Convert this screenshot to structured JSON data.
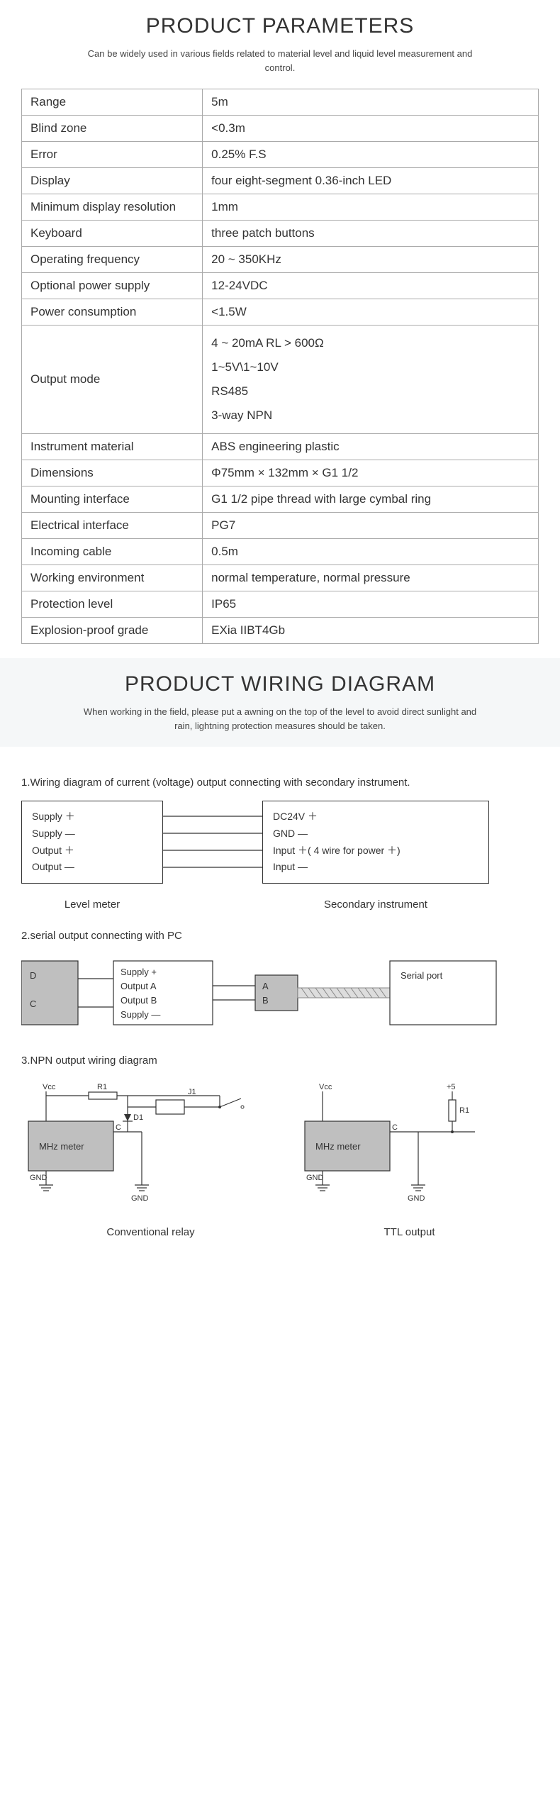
{
  "parameters": {
    "heading": "PRODUCT PARAMETERS",
    "subtitle": "Can be widely used in various fields related to material level and liquid level measurement and control.",
    "rows": [
      [
        "Range",
        "5m"
      ],
      [
        "Blind zone",
        "<0.3m"
      ],
      [
        "Error",
        "0.25% F.S"
      ],
      [
        "Display",
        "four eight-segment 0.36-inch LED"
      ],
      [
        "Minimum display resolution",
        "1mm"
      ],
      [
        "Keyboard",
        "three patch buttons"
      ],
      [
        "Operating frequency",
        "20 ~ 350KHz"
      ],
      [
        "Optional power supply",
        "12-24VDC"
      ],
      [
        "Power consumption",
        "<1.5W"
      ],
      [
        "Output mode",
        "4 ~ 20mA RL > 600Ω\n1~5V\\1~10V\nRS485\n3-way NPN"
      ],
      [
        "Instrument material",
        "ABS engineering plastic"
      ],
      [
        "Dimensions",
        "Φ75mm × 132mm × G1 1/2"
      ],
      [
        "Mounting interface",
        "G1 1/2 pipe thread with large cymbal ring"
      ],
      [
        "Electrical interface",
        "PG7"
      ],
      [
        "Incoming cable",
        "0.5m"
      ],
      [
        "Working environment",
        "normal temperature, normal pressure"
      ],
      [
        "Protection level",
        "IP65"
      ],
      [
        "Explosion-proof grade",
        "EXia IIBT4Gb"
      ]
    ]
  },
  "wiring": {
    "heading": "PRODUCT WIRING DIAGRAM",
    "subtitle": "When working in the field, please put a awning on the top of the level to avoid direct sunlight and rain, lightning protection measures should be taken.",
    "diag1": {
      "title": "1.Wiring diagram of current (voltage) output connecting with secondary instrument.",
      "left": {
        "lines": [
          "Supply ＋",
          "Supply —",
          "Output ＋",
          "Output —"
        ],
        "caption": "Level meter"
      },
      "right": {
        "lines": [
          "DC24V ＋",
          "GND —",
          "Input ＋( 4 wire for power ＋)",
          "Input —"
        ],
        "caption": "Secondary instrument"
      }
    },
    "diag2": {
      "title": "2.serial output connecting with PC",
      "leftbox": {
        "D": "D",
        "C": "C"
      },
      "midbox": {
        "lines": [
          "Supply +",
          "Output  A",
          "Output  B",
          "Supply —"
        ]
      },
      "convbox": {
        "A": "A",
        "B": "B"
      },
      "rightbox": "Serial port"
    },
    "diag3": {
      "title": "3.NPN output wiring diagram",
      "left_caption": "Conventional relay",
      "right_caption": "TTL output",
      "meter": "MHz meter",
      "vcc": "Vcc",
      "gnd": "GND",
      "r1": "R1",
      "d1": "D1",
      "j1": "J1",
      "plus5": "+5",
      "c": "C"
    }
  },
  "colors": {
    "border": "#333",
    "graybox": "#bfbfbf",
    "page_bg": "#ffffff",
    "wiring_bg": "#f5f7f8"
  }
}
